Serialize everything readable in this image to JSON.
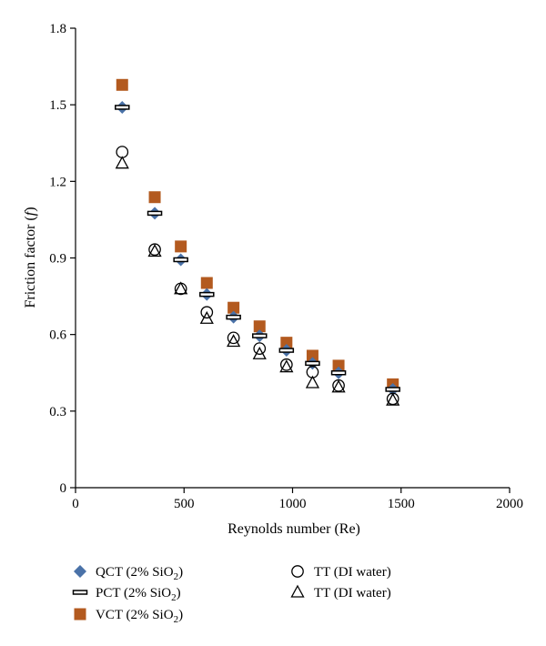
{
  "chart_data": {
    "type": "scatter",
    "title": "",
    "xlabel": "Reynolds number (Re)",
    "ylabel_parts": [
      "Friction factor (",
      "f",
      ")"
    ],
    "xlim": [
      0,
      2000
    ],
    "ylim": [
      0,
      1.8
    ],
    "xticks": [
      "0",
      "500",
      "1000",
      "1500",
      "2000"
    ],
    "yticks": [
      "0",
      "0.3",
      "0.6",
      "0.9",
      "1.2",
      "1.5",
      "1.8"
    ],
    "grid": false,
    "legend_position": "below",
    "series": [
      {
        "label_main": "QCT (2% SiO",
        "label_sub": "2",
        "label_tail": ")",
        "marker": "diamond",
        "color": "#4a72a8",
        "x": [
          215,
          365,
          485,
          605,
          728,
          848,
          972,
          1092,
          1212,
          1462
        ],
        "y": [
          1.49,
          1.075,
          0.893,
          0.757,
          0.668,
          0.595,
          0.538,
          0.487,
          0.45,
          0.385
        ]
      },
      {
        "label_main": "PCT (2% SiO",
        "label_sub": "2",
        "label_tail": ")",
        "marker": "dash",
        "color": "#000000",
        "x": [
          215,
          365,
          485,
          605,
          728,
          848,
          972,
          1092,
          1212,
          1462
        ],
        "y": [
          1.49,
          1.075,
          0.893,
          0.757,
          0.668,
          0.595,
          0.538,
          0.487,
          0.45,
          0.385
        ]
      },
      {
        "label_main": "VCT (2% SiO",
        "label_sub": "2",
        "label_tail": ")",
        "marker": "square",
        "color": "#b35a1f",
        "x": [
          215,
          365,
          485,
          605,
          728,
          848,
          972,
          1092,
          1212,
          1462
        ],
        "y": [
          1.578,
          1.138,
          0.945,
          0.802,
          0.705,
          0.632,
          0.568,
          0.517,
          0.478,
          0.405
        ]
      },
      {
        "label_main": "TT (DI water)",
        "label_sub": "",
        "label_tail": "",
        "marker": "circle",
        "color": "#000000",
        "x": [
          215,
          365,
          485,
          605,
          728,
          848,
          972,
          1092,
          1212,
          1462
        ],
        "y": [
          1.315,
          0.933,
          0.779,
          0.687,
          0.587,
          0.545,
          0.482,
          0.453,
          0.4,
          0.348
        ]
      },
      {
        "label_main": "TT (DI water)",
        "label_sub": "",
        "label_tail": "",
        "marker": "triangle",
        "color": "#000000",
        "x": [
          215,
          365,
          485,
          605,
          728,
          848,
          972,
          1092,
          1212,
          1462
        ],
        "y": [
          1.27,
          0.925,
          0.778,
          0.662,
          0.572,
          0.523,
          0.472,
          0.41,
          0.393,
          0.342
        ]
      }
    ]
  }
}
